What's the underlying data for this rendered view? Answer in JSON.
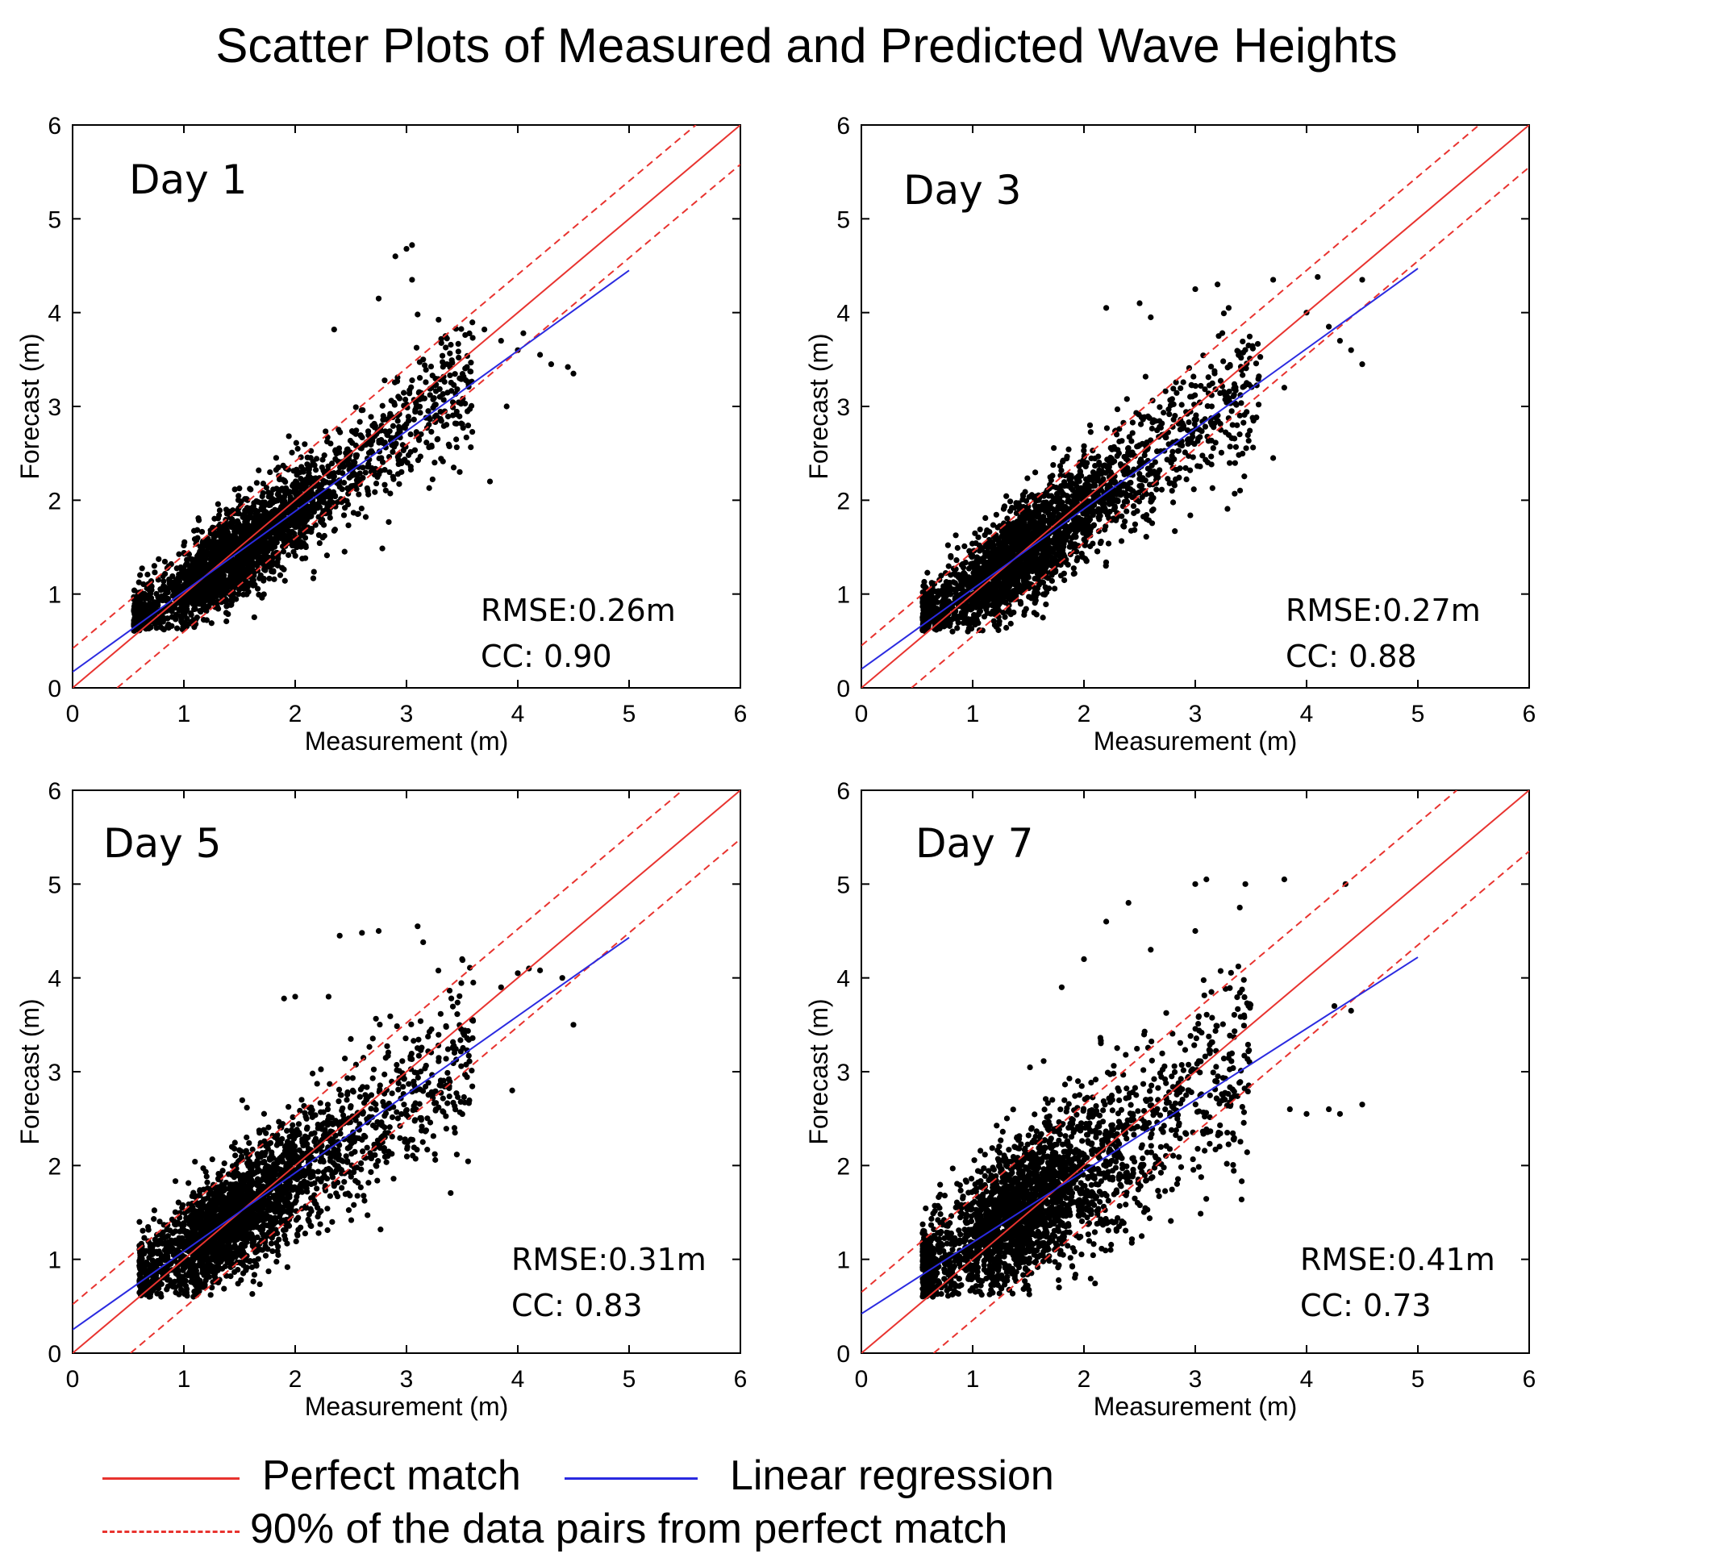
{
  "title": "Scatter Plots of Measured and Predicted Wave Heights",
  "colors": {
    "perfect_match": "#e8332f",
    "band": "#e8332f",
    "regression": "#2a2ae0",
    "points": "#000000"
  },
  "legend": {
    "perfect_match": "Perfect match",
    "regression": "Linear regression",
    "band": "90% of the data pairs from perfect match"
  },
  "chart_data": [
    {
      "type": "scatter",
      "panel_label": "Day 1",
      "xlabel": "Measurement (m)",
      "ylabel": "Forecast (m)",
      "xlim": [
        0,
        6
      ],
      "ylim": [
        0,
        6
      ],
      "xticks": [
        "0",
        "1",
        "2",
        "3",
        "4",
        "5",
        "6"
      ],
      "yticks": [
        "0",
        "1",
        "2",
        "3",
        "4",
        "5",
        "6"
      ],
      "stats": [
        "RMSE:0.26m",
        "CC: 0.90"
      ],
      "perfect_match": [
        [
          0,
          0
        ],
        [
          6,
          6
        ]
      ],
      "band_upper": [
        [
          0,
          0.42
        ],
        [
          5.6,
          6
        ]
      ],
      "band_lower": [
        [
          0.4,
          0
        ],
        [
          6,
          5.58
        ]
      ],
      "regression": [
        [
          0,
          0.17
        ],
        [
          5.0,
          4.45
        ]
      ],
      "cloud": {
        "x_min": 0.55,
        "x_max": 3.6,
        "slope": 0.86,
        "intercept": 0.17,
        "spread": 0.28
      },
      "outliers": [
        [
          2.35,
          3.82
        ],
        [
          2.75,
          4.15
        ],
        [
          2.9,
          4.6
        ],
        [
          3.0,
          4.68
        ],
        [
          3.05,
          4.72
        ],
        [
          3.05,
          4.35
        ],
        [
          3.1,
          3.98
        ],
        [
          3.35,
          3.75
        ],
        [
          3.7,
          3.82
        ],
        [
          3.85,
          3.7
        ],
        [
          4.0,
          3.6
        ],
        [
          4.05,
          3.78
        ],
        [
          4.2,
          3.55
        ],
        [
          4.3,
          3.45
        ],
        [
          4.45,
          3.42
        ],
        [
          4.5,
          3.35
        ],
        [
          3.75,
          2.2
        ],
        [
          3.9,
          3.0
        ]
      ]
    },
    {
      "type": "scatter",
      "panel_label": "Day 3",
      "xlabel": "Measurement (m)",
      "ylabel": "Forecast (m)",
      "xlim": [
        0,
        6
      ],
      "ylim": [
        0,
        6
      ],
      "xticks": [
        "0",
        "1",
        "2",
        "3",
        "4",
        "5",
        "6"
      ],
      "yticks": [
        "0",
        "1",
        "2",
        "3",
        "4",
        "5",
        "6"
      ],
      "stats": [
        "RMSE:0.27m",
        "CC: 0.88"
      ],
      "perfect_match": [
        [
          0,
          0
        ],
        [
          6,
          6
        ]
      ],
      "band_upper": [
        [
          0,
          0.45
        ],
        [
          5.55,
          6
        ]
      ],
      "band_lower": [
        [
          0.45,
          0
        ],
        [
          6,
          5.55
        ]
      ],
      "regression": [
        [
          0,
          0.2
        ],
        [
          5.0,
          4.47
        ]
      ],
      "cloud": {
        "x_min": 0.55,
        "x_max": 3.6,
        "slope": 0.86,
        "intercept": 0.2,
        "spread": 0.32
      },
      "outliers": [
        [
          2.5,
          4.1
        ],
        [
          2.6,
          3.95
        ],
        [
          3.0,
          4.25
        ],
        [
          3.2,
          4.3
        ],
        [
          3.3,
          4.05
        ],
        [
          3.7,
          4.35
        ],
        [
          4.1,
          4.38
        ],
        [
          4.0,
          4.0
        ],
        [
          4.2,
          3.85
        ],
        [
          4.3,
          3.7
        ],
        [
          4.5,
          4.35
        ],
        [
          4.5,
          3.45
        ],
        [
          4.4,
          3.6
        ],
        [
          3.7,
          2.45
        ],
        [
          3.8,
          3.2
        ],
        [
          2.2,
          4.05
        ]
      ]
    },
    {
      "type": "scatter",
      "panel_label": "Day 5",
      "xlabel": "Measurement (m)",
      "ylabel": "Forecast (m)",
      "xlim": [
        0,
        6
      ],
      "ylim": [
        0,
        6
      ],
      "xticks": [
        "0",
        "1",
        "2",
        "3",
        "4",
        "5",
        "6"
      ],
      "yticks": [
        "0",
        "1",
        "2",
        "3",
        "4",
        "5",
        "6"
      ],
      "stats": [
        "RMSE:0.31m",
        "CC: 0.83"
      ],
      "perfect_match": [
        [
          0,
          0
        ],
        [
          6,
          6
        ]
      ],
      "band_upper": [
        [
          0,
          0.52
        ],
        [
          5.48,
          6
        ]
      ],
      "band_lower": [
        [
          0.52,
          0
        ],
        [
          6,
          5.48
        ]
      ],
      "regression": [
        [
          0,
          0.25
        ],
        [
          5.0,
          4.43
        ]
      ],
      "cloud": {
        "x_min": 0.6,
        "x_max": 3.6,
        "slope": 0.83,
        "intercept": 0.25,
        "spread": 0.36
      },
      "outliers": [
        [
          2.4,
          4.45
        ],
        [
          2.6,
          4.48
        ],
        [
          2.75,
          4.5
        ],
        [
          3.1,
          4.55
        ],
        [
          3.15,
          4.38
        ],
        [
          3.5,
          4.2
        ],
        [
          3.6,
          3.95
        ],
        [
          3.85,
          3.9
        ],
        [
          4.0,
          4.05
        ],
        [
          4.1,
          4.1
        ],
        [
          4.2,
          4.08
        ],
        [
          4.4,
          4.0
        ],
        [
          4.5,
          3.5
        ],
        [
          3.95,
          2.8
        ],
        [
          1.9,
          3.78
        ],
        [
          2.0,
          3.8
        ],
        [
          2.3,
          3.8
        ]
      ]
    },
    {
      "type": "scatter",
      "panel_label": "Day 7",
      "xlabel": "Measurement (m)",
      "ylabel": "Forecast (m)",
      "xlim": [
        0,
        6
      ],
      "ylim": [
        0,
        6
      ],
      "xticks": [
        "0",
        "1",
        "2",
        "3",
        "4",
        "5",
        "6"
      ],
      "yticks": [
        "0",
        "1",
        "2",
        "3",
        "4",
        "5",
        "6"
      ],
      "stats": [
        "RMSE:0.41m",
        "CC: 0.73"
      ],
      "perfect_match": [
        [
          0,
          0
        ],
        [
          6,
          6
        ]
      ],
      "band_upper": [
        [
          0,
          0.65
        ],
        [
          5.35,
          6
        ]
      ],
      "band_lower": [
        [
          0.65,
          0
        ],
        [
          6,
          5.35
        ]
      ],
      "regression": [
        [
          0,
          0.42
        ],
        [
          5.0,
          4.22
        ]
      ],
      "cloud": {
        "x_min": 0.55,
        "x_max": 3.5,
        "slope": 0.76,
        "intercept": 0.42,
        "spread": 0.45
      },
      "outliers": [
        [
          2.4,
          4.8
        ],
        [
          3.0,
          5.0
        ],
        [
          3.1,
          5.05
        ],
        [
          3.45,
          5.0
        ],
        [
          3.8,
          5.05
        ],
        [
          4.35,
          5.0
        ],
        [
          2.2,
          4.6
        ],
        [
          2.6,
          4.3
        ],
        [
          3.4,
          4.75
        ],
        [
          4.25,
          3.7
        ],
        [
          4.4,
          3.65
        ],
        [
          3.85,
          2.6
        ],
        [
          4.0,
          2.55
        ],
        [
          4.2,
          2.6
        ],
        [
          4.3,
          2.55
        ],
        [
          4.5,
          2.65
        ],
        [
          3.0,
          4.5
        ],
        [
          2.0,
          4.2
        ],
        [
          1.8,
          3.9
        ]
      ]
    }
  ]
}
